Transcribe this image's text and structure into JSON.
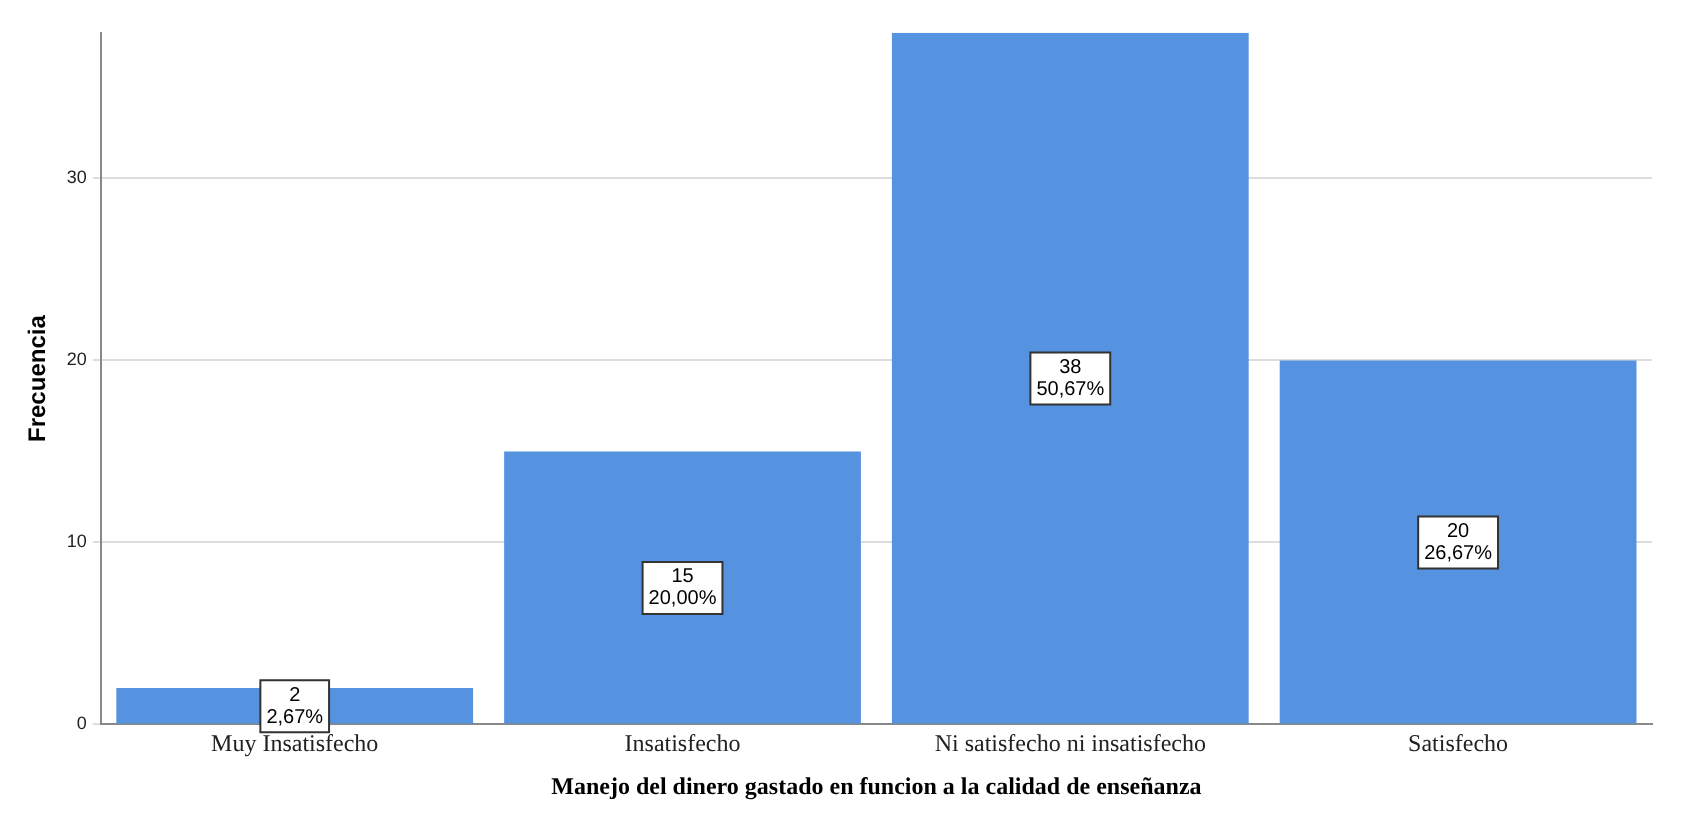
{
  "chart_data": {
    "type": "bar",
    "xlabel": "Manejo del dinero gastado en funcion a la calidad de enseñanza",
    "ylabel": "Frecuencia",
    "categories": [
      "Muy Insatisfecho",
      "Insatisfecho",
      "Ni satisfecho ni insatisfecho",
      "Satisfecho"
    ],
    "values": [
      2,
      15,
      38,
      20
    ],
    "color": "#5592e0",
    "value_labels": [
      "2\n2,67%",
      "15\n20,00%",
      "38\n50,67%",
      "20\n26,67%"
    ],
    "ylim": [
      0,
      38
    ],
    "yticks": [
      0,
      10,
      20,
      30
    ],
    "grid": "y"
  }
}
